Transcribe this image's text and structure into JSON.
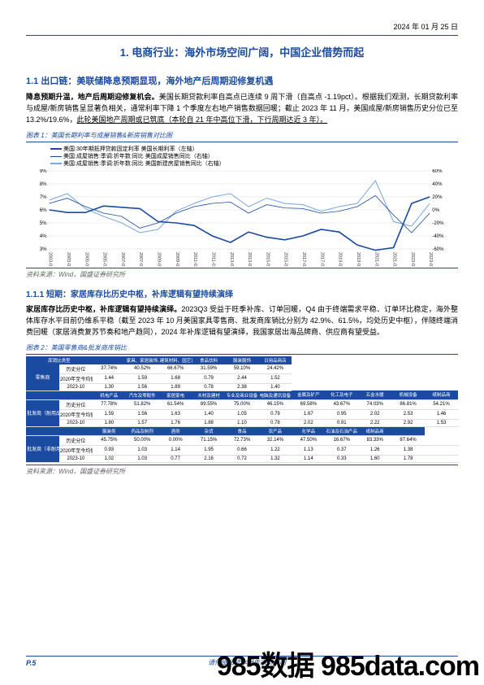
{
  "date": "2024 年 01 月 25 日",
  "h1": "1. 电商行业：海外市场空间广阔，中国企业借势而起",
  "h2": "1.1 出口链：美联储降息预期显现，海外地产后周期迎修复机遇",
  "para1_bold": "降息预期升温，地产后周期迎修复机会。",
  "para1_rest": "美国长期贷款利率自高点已连续 9 周下滑（自高点 -1.19pct）。根据我们观测，长期贷款利率与成屋/新房销售呈显著负相关，通常利率下降 1 个季度左右地产销售数据回暖；截止 2023 年 11 月，美国成屋/新房销售历史分位已至 13.2%/19.6%，",
  "para1_ul": "此轮美国地产周期或已筑底（本轮自 21 年中高位下滑，下行周期达近 3 年）。",
  "fig1_label": "图表 1：美国长期利率与成屋销售&新房销售对比图",
  "chart1": {
    "type": "line",
    "legend": [
      {
        "label": "美国:30年期抵押贷款固定利率 美国长期利率（左轴）",
        "color": "#1b4ba0",
        "style": "solid"
      },
      {
        "label": "美国:成屋销售:季调:折年数:同比 美国成屋销售同比（右轴）",
        "color": "#1b4ba0",
        "style": "solid",
        "thin": true
      },
      {
        "label": "美国:成屋销售:季调:折年数:同比 美国新建房屋销售同比（右轴）",
        "color": "#7aa8e0",
        "style": "solid"
      }
    ],
    "left_axis": {
      "min": 3,
      "max": 9,
      "ticks": [
        3,
        4,
        5,
        6,
        7,
        8,
        9
      ],
      "fmt": "%"
    },
    "right_axis": {
      "min": -60,
      "max": 60,
      "ticks": [
        -60,
        -40,
        -20,
        0,
        20,
        40,
        60
      ],
      "fmt": "%"
    },
    "x_labels": [
      "2003-01",
      "2003-01",
      "2005-01",
      "2005-01",
      "2007-01",
      "2007-01",
      "2009-01",
      "2009-01",
      "2011-01",
      "2011-01",
      "2013-01",
      "2013-01",
      "2015-01",
      "2015-01",
      "2017-01",
      "2017-01",
      "2019-01",
      "2019-01",
      "2021-01",
      "2021-01",
      "2023-01",
      "2023-01"
    ],
    "series_left": [
      6.0,
      5.8,
      5.8,
      6.3,
      6.2,
      6.1,
      5.1,
      5.0,
      4.8,
      4.0,
      3.5,
      4.3,
      3.9,
      3.7,
      4.0,
      4.5,
      4.3,
      3.3,
      2.9,
      3.1,
      6.5,
      7.0
    ],
    "series_right1": [
      10,
      18,
      5,
      -5,
      -10,
      -28,
      -20,
      -5,
      5,
      10,
      12,
      -5,
      8,
      3,
      2,
      -5,
      -2,
      5,
      22,
      -8,
      -35,
      -5
    ],
    "series_right2": [
      15,
      25,
      2,
      -10,
      -20,
      -35,
      -30,
      -2,
      10,
      20,
      25,
      5,
      18,
      10,
      8,
      -2,
      5,
      10,
      45,
      -18,
      -25,
      10
    ],
    "bg": "#ffffff",
    "grid": "#d9d9d9"
  },
  "src1": "资料来源：Wind，国盛证券研究所",
  "h3": "1.1.1 短期：家居库存比历史中枢，补库逻辑有望持续演绎",
  "para2_bold": "家居库存比历史中枢，补库逻辑有望持续演绎。",
  "para2_rest": "2023Q3 受益于旺季补库、订单回暖，Q4 由于终端需求平稳、订单环比稳定，海外整体库存水平目前仍维系平稳（截至 2023 年 10 月美国家具零售商、批发商库销比分别为 42.9%、61.5%，均处历史中枢），伴随终端消费回暖（家居消费复苏节奏和地产趋同），2024 年补库逻辑有望演绎，我国家居出海品牌商、供应商有望受益。",
  "fig2_label": "图表 2：美国零售商&批发商库销比",
  "table": {
    "headers_row1": [
      "库销比类型",
      "",
      "家具、家居装饰、电子和家电商店",
      "建筑材料、园艺设备和物料",
      "食品饮料",
      "服装服饰",
      "日用品商店"
    ],
    "group1_name": "零售商",
    "group1_rows": [
      [
        "历史分位",
        "37.74%",
        "40.52%",
        "66.67%",
        "31.59%",
        "59.10%",
        "24.42%"
      ],
      [
        "2020年至今均值",
        "1.44",
        "1.59",
        "1.68",
        "0.79",
        "2.44",
        "1.52"
      ],
      [
        "2023-10",
        "1.30",
        "1.56",
        "1.89",
        "0.78",
        "2.38",
        "1.40"
      ]
    ],
    "headers_row2": [
      "",
      "",
      "机电产品",
      "汽车及零配件",
      "家居家电",
      "木材及建材",
      "专业及商业设备",
      "电脑及通讯设备",
      "金属及矿产",
      "化工及电子",
      "五金水暖",
      "机械设备",
      "纸制品商"
    ],
    "group2_name": "批发商（耐用品）",
    "group2_rows": [
      [
        "历史分位",
        "77.78%",
        "51.82%",
        "61.54%",
        "89.55%",
        "75.00%",
        "46.15%",
        "69.58%",
        "43.67%",
        "74.03%",
        "86.81%",
        "54.21%"
      ],
      [
        "2020年至今均值",
        "1.59",
        "1.56",
        "1.63",
        "1.40",
        "1.05",
        "0.79",
        "1.67",
        "0.95",
        "2.02",
        "2.53",
        "1.46"
      ],
      [
        "2023-10",
        "1.80",
        "1.57",
        "1.76",
        "1.88",
        "1.10",
        "0.78",
        "2.02",
        "0.91",
        "2.22",
        "2.92",
        "1.53"
      ]
    ],
    "headers_row3": [
      "",
      "",
      "服装类",
      "药品及制剂",
      "酒类",
      "杂货",
      "食品",
      "农产品",
      "化学品",
      "石油及石油产品",
      "纸制品商",
      ""
    ],
    "group3_name": "批发商（非耐用品）",
    "group3_rows": [
      [
        "历史分位",
        "45.75%",
        "50.00%",
        "0.00%",
        "71.15%",
        "72.73%",
        "32.14%",
        "47.50%",
        "16.67%",
        "83.33%",
        "87.64%",
        ""
      ],
      [
        "2020年至今均值",
        "0.93",
        "1.03",
        "1.14",
        "1.95",
        "0.66",
        "1.22",
        "1.13",
        "0.37",
        "1.26",
        "1.38",
        ""
      ],
      [
        "2023-10",
        "1.02",
        "1.03",
        "0.77",
        "2.16",
        "0.72",
        "1.32",
        "1.14",
        "0.33",
        "1.60",
        "1.78",
        ""
      ]
    ]
  },
  "src2": "资料来源：Wind，国盛证券研究所",
  "page": "P.5",
  "disclaimer": "请仔细阅读本报告末页声明",
  "watermark": "985数据 985data.com"
}
